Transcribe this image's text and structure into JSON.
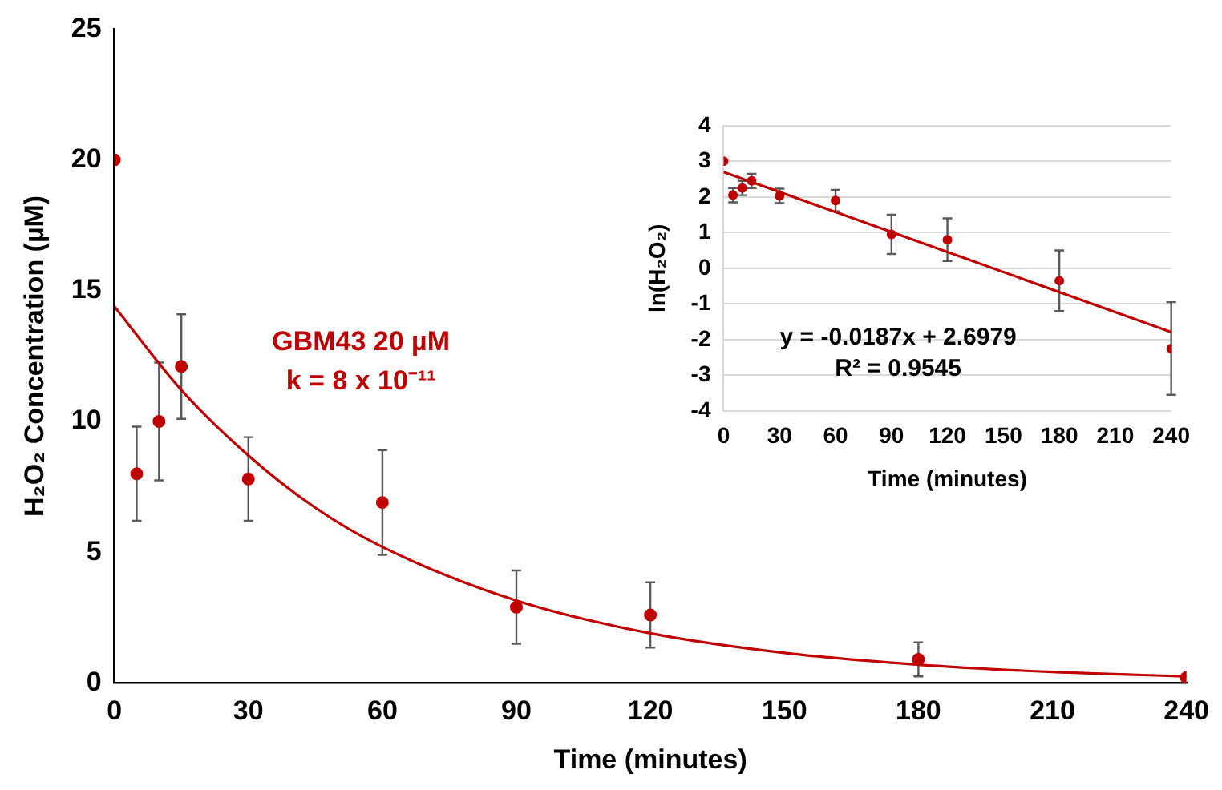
{
  "chart_data": [
    {
      "type": "scatter",
      "xlabel": "Time (minutes)",
      "ylabel": "H₂O₂ Concentration (µM)",
      "xlim": [
        0,
        240
      ],
      "xticks": [
        0,
        30,
        60,
        90,
        120,
        150,
        180,
        210,
        240
      ],
      "ylim": [
        0,
        25
      ],
      "yticks": [
        0,
        5,
        10,
        15,
        20,
        25
      ],
      "grid": false,
      "annotations": [
        "GBM43 20 µM",
        "k = 8 x 10⁻¹¹"
      ],
      "series": [
        {
          "color": "#c00000",
          "marker": "circle",
          "x": [
            0,
            5,
            10,
            15,
            30,
            60,
            90,
            120,
            180,
            240
          ],
          "values": [
            20,
            8,
            10,
            12.1,
            7.8,
            6.9,
            2.9,
            2.6,
            0.9,
            0.2
          ],
          "errors": [
            null,
            1.8,
            2.25,
            2,
            1.6,
            2,
            1.4,
            1.25,
            0.65,
            null
          ]
        },
        {
          "type": "line",
          "marker": "none",
          "color": "#c00000",
          "x": [
            0,
            15,
            30,
            45,
            60,
            90,
            120,
            150,
            180,
            210,
            240
          ],
          "values": [
            14.4,
            11.2,
            8.7,
            6.7,
            5.2,
            3.15,
            1.9,
            1.15,
            0.7,
            0.42,
            0.25
          ]
        }
      ]
    },
    {
      "type": "scatter",
      "xlabel": "Time (minutes)",
      "ylabel": "ln(H₂O₂)",
      "xlim": [
        0,
        240
      ],
      "xticks": [
        0,
        30,
        60,
        90,
        120,
        150,
        180,
        210,
        240
      ],
      "ylim": [
        -4,
        4
      ],
      "yticks": [
        -4,
        -3,
        -2,
        -1,
        0,
        1,
        2,
        3,
        4
      ],
      "grid": "y",
      "annotations": [
        "y = -0.0187x + 2.6979",
        "R² = 0.9545"
      ],
      "series": [
        {
          "color": "#c00000",
          "marker": "circle",
          "x": [
            0,
            5,
            10,
            15,
            30,
            60,
            90,
            120,
            180,
            240
          ],
          "values": [
            3.0,
            2.05,
            2.25,
            2.45,
            2.03,
            1.9,
            0.95,
            0.8,
            -0.35,
            -2.25
          ],
          "errors": [
            null,
            0.2,
            0.2,
            0.2,
            0.2,
            0.3,
            0.55,
            0.6,
            0.85,
            1.3
          ]
        },
        {
          "type": "line",
          "marker": "none",
          "color": "#c00000",
          "x": [
            0,
            240
          ],
          "values": [
            2.7,
            -1.79
          ]
        }
      ]
    }
  ]
}
